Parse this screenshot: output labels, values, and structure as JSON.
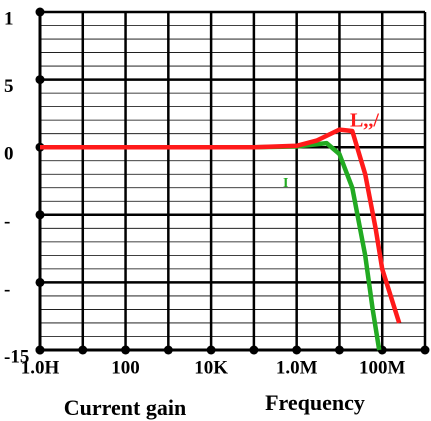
{
  "chart_data": {
    "type": "line",
    "x_label": "Frequency",
    "y_label": "Current gain",
    "xscale": "log",
    "xlim": [
      1,
      1000000000
    ],
    "xticks": [
      {
        "value": 1,
        "label": "1.0H"
      },
      100,
      {
        "value": 10000,
        "label": "10K"
      },
      {
        "value": 1000000,
        "label": "1.0M"
      },
      {
        "value": 100000000,
        "label": "100M"
      }
    ],
    "xminorticks": [
      10,
      1000,
      100000,
      10000000,
      1000000000
    ],
    "ylim": [
      -15,
      10
    ],
    "yticks": [
      {
        "value": 10,
        "label": "1"
      },
      5,
      0,
      {
        "value": -5,
        "label": "-"
      },
      {
        "value": -10,
        "label": "-"
      },
      -15
    ],
    "yminorticks": [
      -14,
      -13,
      -12,
      -11,
      -9,
      -8,
      -7,
      -6,
      -4,
      -3,
      -2,
      -1,
      1,
      2,
      3,
      4,
      6,
      7,
      8,
      9
    ],
    "grid": true,
    "series": [
      {
        "name": "L,,/",
        "color": "#ff1a1a",
        "x": [
          1,
          100000,
          1000000,
          3000000,
          10000000,
          20000000,
          40000000,
          70000000,
          100000000,
          250000000
        ],
        "values": [
          0,
          0,
          0.1,
          0.5,
          1.3,
          1.2,
          -2,
          -6,
          -9,
          -13
        ]
      },
      {
        "name": "I",
        "color": "#22aa22",
        "x": [
          1,
          100000,
          1000000,
          5000000,
          10000000,
          20000000,
          40000000,
          60000000,
          85000000
        ],
        "values": [
          0,
          0,
          0.05,
          0.3,
          -0.5,
          -3,
          -8,
          -12,
          -15
        ]
      }
    ]
  }
}
